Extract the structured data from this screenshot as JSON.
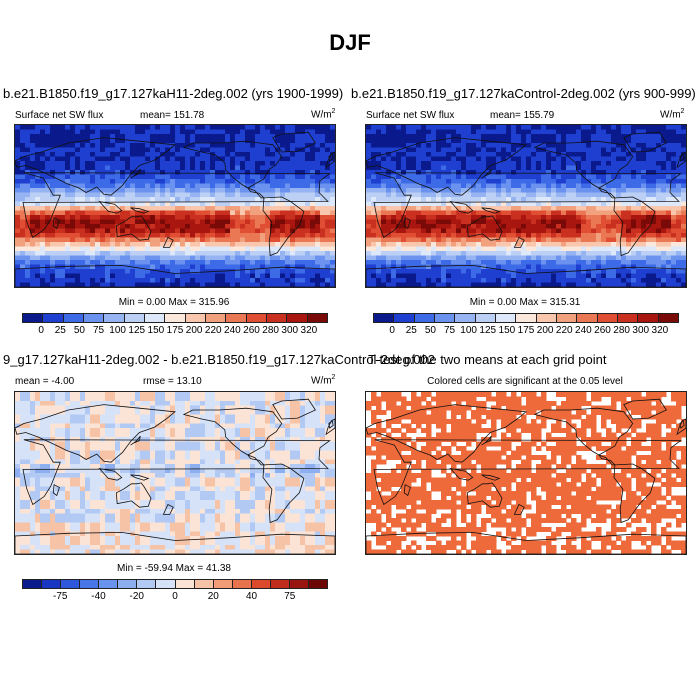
{
  "title": "DJF",
  "panels": {
    "top_left": {
      "title": "b.e21.B1850.f19_g17.127kaH11-2deg.002 (yrs 1900-1999)",
      "variable": "Surface net SW flux",
      "mean_text": "mean= 151.78",
      "units_base": "W/m",
      "units_sup": "2",
      "minmax": "Min =   0.00 Max = 315.96"
    },
    "top_right": {
      "title": "b.e21.B1850.f19_g17.127kaControl-2deg.002 (yrs 900-999)",
      "variable": "Surface net SW flux",
      "mean_text": "mean= 155.79",
      "units_base": "W/m",
      "units_sup": "2",
      "minmax": "Min =   0.00 Max = 315.31"
    },
    "bottom_left": {
      "title": "9_g17.127kaH11-2deg.002 - b.e21.B1850.f19_g17.127kaControl-2deg.002",
      "mean_text": "mean = -4.00",
      "rmse_text": "rmse =  13.10",
      "units_base": "W/m",
      "units_sup": "2",
      "minmax": "Min = -59.94 Max = 41.38"
    },
    "bottom_right": {
      "title": "T-test of the two means at each grid point",
      "subtitle": "Colored cells are significant at the 0.05 level"
    }
  },
  "colorbars": {
    "abs": {
      "colors": [
        "#0a1a8c",
        "#1f3fd0",
        "#3d6ae6",
        "#6b92ee",
        "#97b4f2",
        "#bcd0f6",
        "#dde8fa",
        "#fbe8dc",
        "#f8c7ad",
        "#f2a17f",
        "#ea7855",
        "#e04f33",
        "#c9301f",
        "#a8160f",
        "#7a0a07"
      ],
      "labels": [
        "0",
        "25",
        "50",
        "75",
        "100",
        "125",
        "150",
        "175",
        "200",
        "220",
        "240",
        "260",
        "280",
        "300",
        "320"
      ]
    },
    "diff": {
      "colors": [
        "#0a1a8c",
        "#1a37c4",
        "#2e57dc",
        "#4876e6",
        "#6993ee",
        "#8eafef",
        "#b2c9f4",
        "#d6e2f8",
        "#fbe4d6",
        "#f7c3a7",
        "#f19b77",
        "#e8744d",
        "#dc4a2e",
        "#c22c1d",
        "#9a1410",
        "#6b0806"
      ],
      "labels": [
        "-75",
        "-40",
        "-20",
        "0",
        "20",
        "40",
        "75"
      ]
    }
  },
  "ttest_color": "#ee6a3a"
}
